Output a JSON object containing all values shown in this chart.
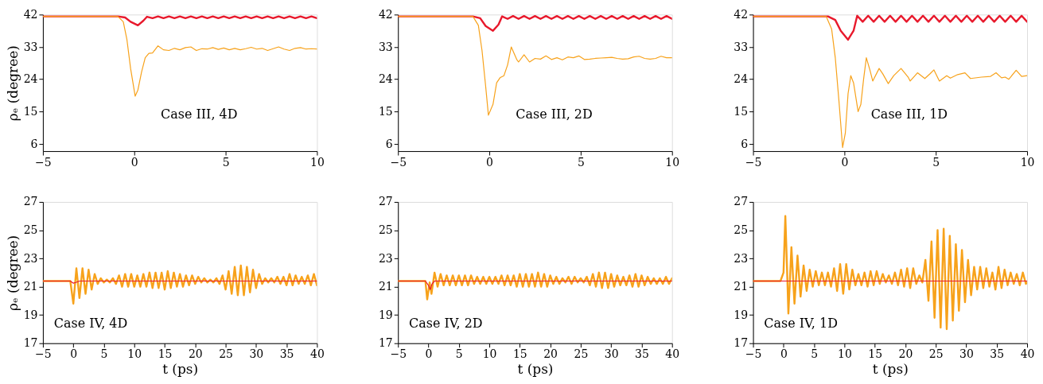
{
  "chart_data": [
    {
      "type": "line",
      "ylabel": "ρₑ (degree)",
      "xlim": [
        -5,
        10
      ],
      "xticks": [
        -5,
        0,
        5,
        10
      ],
      "ylim": [
        4,
        42
      ],
      "yticks": [
        6,
        15,
        24,
        33,
        42
      ],
      "annotations": [
        "Case III,  4D"
      ],
      "series": [
        {
          "color": "#e8192c",
          "x": [
            -5,
            -0.9,
            -0.5,
            -0.2,
            0.2,
            0.5,
            0.7,
            1.0,
            1.3,
            1.6,
            1.9,
            2.2,
            2.5,
            2.8,
            3.1,
            3.4,
            3.7,
            4.0,
            4.3,
            4.6,
            4.9,
            5.2,
            5.5,
            5.8,
            6.1,
            6.4,
            6.7,
            7.0,
            7.3,
            7.6,
            7.9,
            8.2,
            8.5,
            8.8,
            9.1,
            9.4,
            9.7,
            10.0
          ],
          "values": [
            41.5,
            41.5,
            41.2,
            40.0,
            39.0,
            40.3,
            41.4,
            41.0,
            41.5,
            41.0,
            41.5,
            41.0,
            41.5,
            41.0,
            41.5,
            41.0,
            41.5,
            41.0,
            41.5,
            41.0,
            41.5,
            41.0,
            41.5,
            41.0,
            41.5,
            41.0,
            41.5,
            41.0,
            41.5,
            41.0,
            41.5,
            41.0,
            41.5,
            41.0,
            41.5,
            41.0,
            41.5,
            41.0
          ]
        },
        {
          "color": "#f7a21b",
          "x": [
            -5,
            -0.9,
            -0.6,
            -0.4,
            -0.2,
            0.05,
            0.2,
            0.4,
            0.6,
            0.8,
            1.0,
            1.3,
            1.6,
            1.9,
            2.2,
            2.5,
            2.8,
            3.1,
            3.4,
            3.7,
            4.0,
            4.3,
            4.6,
            4.9,
            5.2,
            5.5,
            5.8,
            6.1,
            6.4,
            6.7,
            7.0,
            7.3,
            7.6,
            7.9,
            8.2,
            8.5,
            8.8,
            9.1,
            9.4,
            9.7,
            10
          ],
          "values": [
            41.5,
            41.5,
            40,
            35,
            27,
            19.3,
            21,
            26,
            30,
            31.2,
            31.3,
            33.3,
            32.2,
            32.0,
            32.6,
            32.2,
            32.8,
            33.0,
            32.0,
            32.5,
            32.4,
            32.8,
            32.3,
            32.7,
            32.2,
            32.6,
            32.2,
            32.5,
            32.9,
            32.4,
            32.6,
            32.0,
            32.5,
            33.0,
            32.4,
            32.0,
            32.6,
            32.8,
            32.4,
            32.5,
            32.4
          ]
        }
      ]
    },
    {
      "type": "line",
      "xlim": [
        -5,
        10
      ],
      "xticks": [
        -5,
        0,
        5,
        10
      ],
      "ylim": [
        4,
        42
      ],
      "yticks": [
        6,
        15,
        24,
        33,
        42
      ],
      "annotations": [
        "Case III,  2D"
      ],
      "series": [
        {
          "color": "#e8192c",
          "x": [
            -5,
            -0.9,
            -0.5,
            -0.2,
            0.2,
            0.5,
            0.7,
            1.0,
            1.3,
            1.6,
            1.9,
            2.2,
            2.5,
            2.8,
            3.1,
            3.4,
            3.7,
            4.0,
            4.3,
            4.6,
            4.9,
            5.2,
            5.5,
            5.8,
            6.1,
            6.4,
            6.7,
            7.0,
            7.3,
            7.6,
            7.9,
            8.2,
            8.5,
            8.8,
            9.1,
            9.4,
            9.7,
            10.0
          ],
          "values": [
            41.5,
            41.5,
            41.0,
            38.8,
            37.5,
            39.2,
            41.5,
            40.8,
            41.6,
            40.8,
            41.6,
            40.8,
            41.6,
            40.8,
            41.6,
            40.8,
            41.6,
            40.8,
            41.6,
            40.8,
            41.6,
            40.8,
            41.6,
            40.8,
            41.6,
            40.8,
            41.6,
            40.8,
            41.6,
            40.8,
            41.6,
            40.8,
            41.6,
            40.8,
            41.6,
            40.8,
            41.6,
            40.8
          ]
        },
        {
          "color": "#f7a21b",
          "x": [
            -5,
            -0.9,
            -0.6,
            -0.4,
            -0.2,
            -0.05,
            0.2,
            0.4,
            0.6,
            0.8,
            1.0,
            1.2,
            1.5,
            1.6,
            1.9,
            2.2,
            2.5,
            2.8,
            3.1,
            3.4,
            3.7,
            4.0,
            4.3,
            4.6,
            4.9,
            5.2,
            5.5,
            5.8,
            6.1,
            6.4,
            6.7,
            7.0,
            7.3,
            7.6,
            7.9,
            8.2,
            8.5,
            8.8,
            9.1,
            9.4,
            9.7,
            10
          ],
          "values": [
            41.5,
            41.5,
            39,
            32,
            22,
            14,
            17,
            23,
            24.5,
            25,
            28,
            33.0,
            29.5,
            28.8,
            30.8,
            28.8,
            29.8,
            29.6,
            30.5,
            29.5,
            30.0,
            29.4,
            30.2,
            30.0,
            30.5,
            29.5,
            29.6,
            29.8,
            29.9,
            30.0,
            30.1,
            29.8,
            29.6,
            29.7,
            30.2,
            30.4,
            29.8,
            29.6,
            29.8,
            30.4,
            30.0,
            30.0
          ]
        }
      ]
    },
    {
      "type": "line",
      "xlim": [
        -5,
        10
      ],
      "xticks": [
        -5,
        0,
        5,
        10
      ],
      "ylim": [
        4,
        42
      ],
      "yticks": [
        6,
        15,
        24,
        33,
        42
      ],
      "annotations": [
        "Case III,  1D"
      ],
      "series": [
        {
          "color": "#e8192c",
          "x": [
            -5,
            -0.9,
            -0.5,
            -0.2,
            0.2,
            0.5,
            0.7,
            1.0,
            1.3,
            1.6,
            1.9,
            2.2,
            2.5,
            2.8,
            3.1,
            3.4,
            3.7,
            4.0,
            4.3,
            4.6,
            4.9,
            5.2,
            5.5,
            5.8,
            6.1,
            6.4,
            6.7,
            7.0,
            7.3,
            7.6,
            7.9,
            8.2,
            8.5,
            8.8,
            9.1,
            9.4,
            9.7,
            10.0
          ],
          "values": [
            41.5,
            41.5,
            40.5,
            37.5,
            35.0,
            37.5,
            41.7,
            40.0,
            41.7,
            40.0,
            41.7,
            40.0,
            41.7,
            40.0,
            41.7,
            40.0,
            41.7,
            40.0,
            41.7,
            40.0,
            41.7,
            40.0,
            41.7,
            40.0,
            41.7,
            40.0,
            41.7,
            40.0,
            41.7,
            40.0,
            41.7,
            40.0,
            41.7,
            40.0,
            41.7,
            40.0,
            41.7,
            40.0
          ]
        },
        {
          "color": "#f7a21b",
          "x": [
            -5,
            -1,
            -0.7,
            -0.5,
            -0.3,
            -0.1,
            0.05,
            0.2,
            0.35,
            0.5,
            0.75,
            0.9,
            1.05,
            1.2,
            1.4,
            1.55,
            1.9,
            2.1,
            2.4,
            2.7,
            3.1,
            3.5,
            3.6,
            4.0,
            4.4,
            4.7,
            4.9,
            5.2,
            5.6,
            5.8,
            6.2,
            6.6,
            6.9,
            7.5,
            8.0,
            8.3,
            8.6,
            8.8,
            9.0,
            9.4,
            9.7,
            10
          ],
          "values": [
            41.5,
            41.5,
            38,
            30,
            18,
            5,
            9,
            20,
            25,
            23,
            15,
            17,
            24,
            30,
            26.5,
            23.5,
            27.0,
            25.5,
            22.8,
            25,
            27.0,
            24.5,
            23.5,
            25.8,
            24.2,
            25.6,
            26.6,
            23.5,
            25.0,
            24.3,
            25.3,
            25.8,
            24.2,
            24.6,
            24.8,
            25.8,
            24.4,
            24.6,
            24.0,
            26.5,
            24.8,
            25.0
          ]
        }
      ]
    },
    {
      "type": "line",
      "ylabel": "ρₑ (degree)",
      "xlabel": "t  (ps)",
      "xlim": [
        -5,
        40
      ],
      "xticks": [
        -5,
        0,
        5,
        10,
        15,
        20,
        25,
        30,
        35,
        40
      ],
      "ylim": [
        17,
        27
      ],
      "yticks": [
        17,
        19,
        21,
        23,
        25,
        27
      ],
      "annotations": [
        "Case IV,  4D"
      ],
      "series": [
        {
          "color": "#f7a21b",
          "x": [
            -5,
            -0.5,
            0,
            0.5,
            1,
            1.5,
            2,
            2.5,
            3,
            3.5,
            4,
            4.5,
            5,
            5.5,
            6,
            6.5,
            7,
            7.5,
            8,
            8.5,
            9,
            9.5,
            10,
            10.5,
            11,
            11.5,
            12,
            12.5,
            13,
            13.5,
            14,
            14.5,
            15,
            15.5,
            16,
            16.5,
            17,
            17.5,
            18,
            18.5,
            19,
            19.5,
            20,
            20.5,
            21,
            21.5,
            22,
            22.5,
            23,
            23.5,
            24,
            24.5,
            25,
            25.5,
            26,
            26.5,
            27,
            27.5,
            28,
            28.5,
            29,
            29.5,
            30,
            30.5,
            31,
            31.5,
            32,
            32.5,
            33,
            33.5,
            34,
            34.5,
            35,
            35.5,
            36,
            36.5,
            37,
            37.5,
            38,
            38.5,
            39,
            39.5,
            40
          ],
          "values": [
            21.4,
            21.4,
            19.8,
            22.3,
            20.2,
            22.3,
            20.5,
            22.2,
            20.8,
            21.9,
            21.2,
            21.6,
            21.3,
            21.5,
            21.3,
            21.6,
            21.2,
            21.8,
            21.0,
            21.9,
            21.0,
            21.9,
            21.0,
            21.8,
            21.0,
            21.9,
            21.0,
            22.0,
            20.9,
            22.0,
            20.9,
            22.0,
            20.8,
            22.1,
            20.9,
            22.0,
            21.0,
            21.9,
            21.0,
            21.8,
            21.1,
            21.8,
            21.2,
            21.7,
            21.3,
            21.6,
            21.3,
            21.5,
            21.3,
            21.6,
            21.2,
            21.8,
            20.8,
            22.1,
            20.5,
            22.4,
            20.4,
            22.5,
            20.4,
            22.4,
            20.6,
            22.2,
            20.9,
            21.9,
            21.2,
            21.6,
            21.3,
            21.6,
            21.3,
            21.7,
            21.2,
            21.7,
            21.1,
            21.9,
            21.1,
            21.8,
            21.2,
            21.7,
            21.2,
            21.8,
            21.1,
            21.9,
            21.1
          ]
        },
        {
          "color": "#e8192c",
          "x": [
            -5,
            -0.5,
            0,
            0.4,
            1,
            40
          ],
          "values": [
            21.4,
            21.4,
            21.25,
            21.3,
            21.4,
            21.4
          ]
        }
      ]
    },
    {
      "type": "line",
      "xlabel": "t  (ps)",
      "xlim": [
        -5,
        40
      ],
      "xticks": [
        -5,
        0,
        5,
        10,
        15,
        20,
        25,
        30,
        35,
        40
      ],
      "ylim": [
        17,
        27
      ],
      "yticks": [
        17,
        19,
        21,
        23,
        25,
        27
      ],
      "annotations": [
        "Case IV,  2D"
      ],
      "series": [
        {
          "color": "#f7a21b",
          "x": [
            -5,
            -0.5,
            -0.2,
            0.2,
            0.5,
            1,
            1.5,
            2,
            2.5,
            3,
            3.5,
            4,
            4.5,
            5,
            5.5,
            6,
            6.5,
            7,
            7.5,
            8,
            8.5,
            9,
            9.5,
            10,
            10.5,
            11,
            11.5,
            12,
            12.5,
            13,
            13.5,
            14,
            14.5,
            15,
            15.5,
            16,
            16.5,
            17,
            17.5,
            18,
            18.5,
            19,
            19.5,
            20,
            20.5,
            21,
            21.5,
            22,
            22.5,
            23,
            23.5,
            24,
            24.5,
            25,
            25.5,
            26,
            26.5,
            27,
            27.5,
            28,
            28.5,
            29,
            29.5,
            30,
            30.5,
            31,
            31.5,
            32,
            32.5,
            33,
            33.5,
            34,
            34.5,
            35,
            35.5,
            36,
            36.5,
            37,
            37.5,
            38,
            38.5,
            39,
            39.5,
            40
          ],
          "values": [
            21.4,
            21.4,
            20.1,
            21.3,
            20.5,
            22.0,
            21.0,
            21.9,
            21.1,
            21.8,
            21.1,
            21.8,
            21.1,
            21.8,
            21.1,
            21.8,
            21.1,
            21.8,
            21.2,
            21.7,
            21.2,
            21.7,
            21.2,
            21.7,
            21.2,
            21.7,
            21.2,
            21.8,
            21.1,
            21.8,
            21.1,
            21.8,
            21.0,
            21.9,
            21.0,
            21.9,
            21.0,
            21.9,
            21.0,
            22.0,
            21.0,
            21.9,
            21.0,
            21.8,
            21.2,
            21.7,
            21.2,
            21.6,
            21.3,
            21.7,
            21.2,
            21.7,
            21.3,
            21.6,
            21.3,
            21.7,
            21.1,
            21.9,
            21.0,
            22.0,
            20.9,
            22.0,
            20.9,
            21.9,
            21.0,
            21.8,
            21.1,
            21.7,
            21.1,
            21.8,
            21.0,
            21.9,
            21.0,
            21.8,
            21.1,
            21.7,
            21.2,
            21.6,
            21.2,
            21.6,
            21.2,
            21.7,
            21.2,
            21.6
          ]
        },
        {
          "color": "#e8192c",
          "x": [
            -5,
            -0.5,
            0,
            0.3,
            0.6,
            1,
            40
          ],
          "values": [
            21.4,
            21.4,
            21.1,
            20.8,
            21.2,
            21.4,
            21.4
          ]
        }
      ]
    },
    {
      "type": "line",
      "xlabel": "t  (ps)",
      "xlim": [
        -5,
        40
      ],
      "xticks": [
        -5,
        0,
        5,
        10,
        15,
        20,
        25,
        30,
        35,
        40
      ],
      "ylim": [
        17,
        27
      ],
      "yticks": [
        17,
        19,
        21,
        23,
        25,
        27
      ],
      "annotations": [
        "Case IV,  1D"
      ],
      "series": [
        {
          "color": "#f7a21b",
          "x": [
            -5,
            -0.5,
            0,
            0.3,
            0.6,
            0.8,
            1.3,
            1.8,
            2.3,
            2.8,
            3.3,
            3.8,
            4.3,
            4.8,
            5.3,
            5.8,
            6.3,
            6.8,
            7.3,
            7.8,
            8.3,
            8.8,
            9.3,
            9.8,
            10.3,
            10.8,
            11.3,
            11.8,
            12.3,
            12.8,
            13.3,
            13.8,
            14.3,
            14.8,
            15.3,
            15.8,
            16.3,
            16.8,
            17.3,
            17.8,
            18.3,
            18.8,
            19.3,
            19.8,
            20.3,
            20.8,
            21.3,
            21.8,
            22.3,
            22.8,
            23.3,
            23.8,
            24.3,
            24.8,
            25.3,
            25.8,
            26.3,
            26.8,
            27.3,
            27.8,
            28.3,
            28.8,
            29.3,
            29.8,
            30.3,
            30.8,
            31.3,
            31.8,
            32.3,
            32.8,
            33.3,
            33.8,
            34.3,
            34.8,
            35.3,
            35.8,
            36.3,
            36.8,
            37.3,
            37.8,
            38.3,
            38.8,
            39.3,
            39.8,
            40
          ],
          "values": [
            21.4,
            21.4,
            22.0,
            26.0,
            22.0,
            19.1,
            23.8,
            19.8,
            23.2,
            20.3,
            22.5,
            20.7,
            22.2,
            21.0,
            22.1,
            21.1,
            22.0,
            21.1,
            22.0,
            21.0,
            22.3,
            20.7,
            22.6,
            20.5,
            22.6,
            20.8,
            22.2,
            21.1,
            21.9,
            21.1,
            22.0,
            21.0,
            22.1,
            21.1,
            22.1,
            21.2,
            21.9,
            21.3,
            21.8,
            21.2,
            22.0,
            21.1,
            22.2,
            21.0,
            22.3,
            20.9,
            22.3,
            21.2,
            21.8,
            21.3,
            22.9,
            20.0,
            24.2,
            18.8,
            25.0,
            18.1,
            25.1,
            18.0,
            24.6,
            18.6,
            24.0,
            19.3,
            23.6,
            19.9,
            22.9,
            20.4,
            22.4,
            20.8,
            22.4,
            20.9,
            22.3,
            21.0,
            22.0,
            20.8,
            22.4,
            20.9,
            22.2,
            21.1,
            22.0,
            21.2,
            21.9,
            21.1,
            22.0,
            21.2,
            21.3
          ]
        },
        {
          "color": "#e8192c",
          "x": [
            -5,
            40
          ],
          "values": [
            21.4,
            21.4
          ]
        }
      ]
    }
  ]
}
